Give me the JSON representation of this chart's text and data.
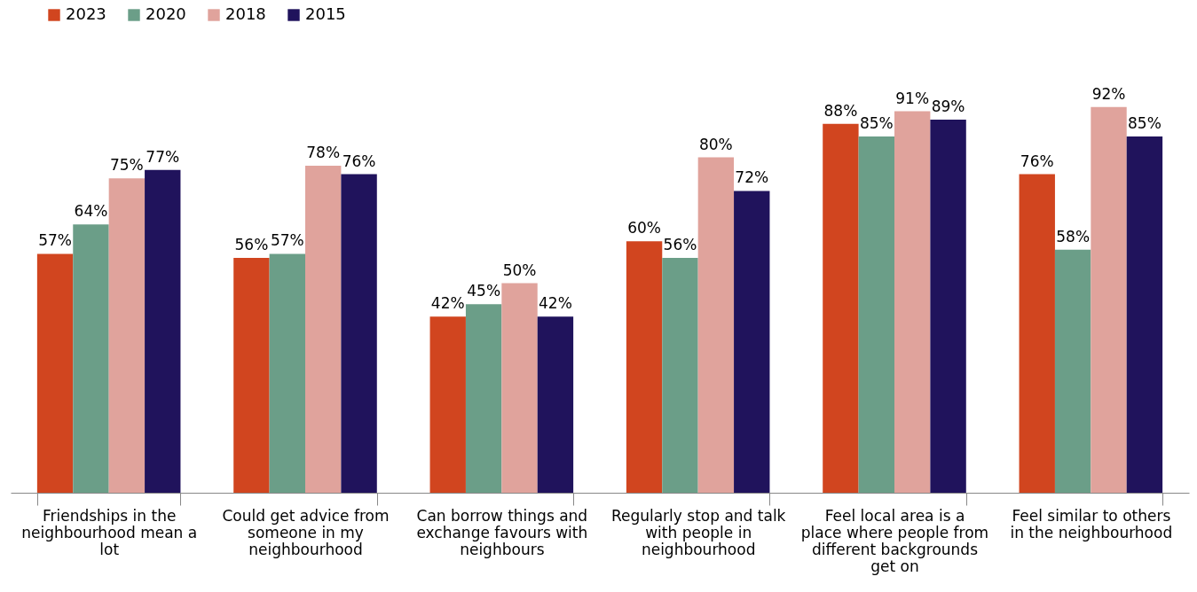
{
  "chart_data": {
    "type": "bar",
    "categories": [
      "Friendships in the neighbourhood mean a lot",
      "Could get advice from someone in my neighbourhood",
      "Can borrow things and exchange favours with neighbours",
      "Regularly stop and talk with people in neighbourhood",
      "Feel local area is a place where people from different backgrounds get on",
      "Feel similar to others in the neighbourhood"
    ],
    "series": [
      {
        "name": "2023",
        "color": "#d1451f",
        "values": [
          57,
          56,
          42,
          60,
          88,
          76
        ],
        "value_labels": [
          "57%",
          "56%",
          "42%",
          "60%",
          "88%",
          "76%"
        ]
      },
      {
        "name": "2020",
        "color": "#6b9e88",
        "values": [
          64,
          57,
          45,
          56,
          85,
          58
        ],
        "value_labels": [
          "64%",
          "57%",
          "45%",
          "56%",
          "85%",
          "58%"
        ]
      },
      {
        "name": "2018",
        "color": "#e0a39c",
        "values": [
          75,
          78,
          50,
          80,
          91,
          92
        ],
        "value_labels": [
          "75%",
          "78%",
          "50%",
          "80%",
          "91%",
          "92%"
        ]
      },
      {
        "name": "2015",
        "color": "#20135c",
        "values": [
          77,
          76,
          42,
          72,
          89,
          85
        ],
        "value_labels": [
          "77%",
          "76%",
          "42%",
          "72%",
          "89%",
          "85%"
        ]
      }
    ],
    "legend": "top left",
    "grid": false
  }
}
